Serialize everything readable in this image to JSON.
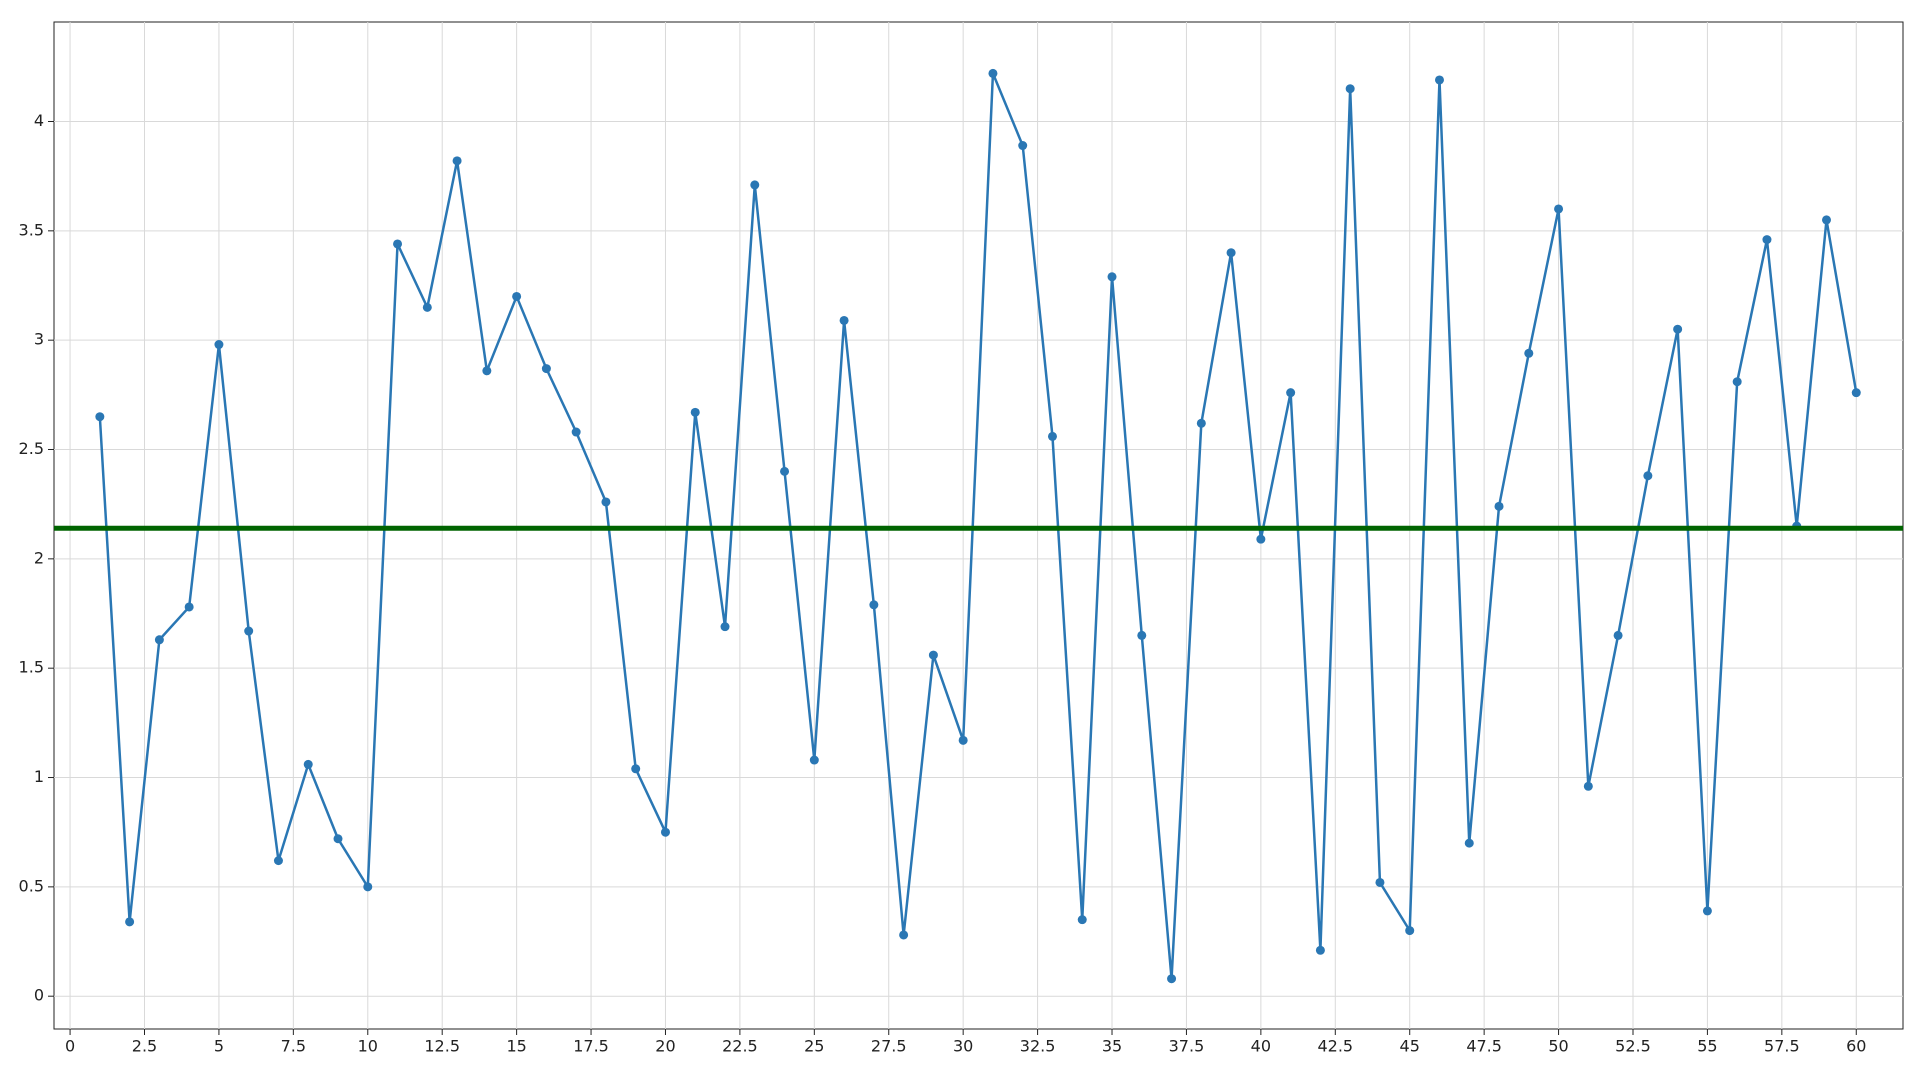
{
  "chart_data": {
    "type": "line",
    "x": [
      1,
      2,
      3,
      4,
      5,
      6,
      7,
      8,
      9,
      10,
      11,
      12,
      13,
      14,
      15,
      16,
      17,
      18,
      19,
      20,
      21,
      22,
      23,
      24,
      25,
      26,
      27,
      28,
      29,
      30,
      31,
      32,
      33,
      34,
      35,
      36,
      37,
      38,
      39,
      40,
      41,
      42,
      43,
      44,
      45,
      46,
      47,
      48,
      49,
      50,
      51,
      52,
      53,
      54,
      55,
      56,
      57,
      58,
      59,
      60
    ],
    "series": [
      {
        "color": "#2a77b4",
        "values": [
          2.65,
          0.34,
          1.63,
          1.78,
          2.98,
          1.67,
          0.62,
          1.06,
          0.72,
          0.5,
          3.44,
          3.15,
          3.82,
          2.86,
          3.2,
          2.87,
          2.58,
          2.26,
          1.04,
          0.75,
          2.67,
          1.69,
          3.71,
          2.4,
          1.08,
          3.09,
          1.79,
          0.28,
          1.56,
          1.17,
          4.22,
          3.89,
          2.56,
          0.35,
          3.29,
          1.65,
          0.08,
          2.62,
          3.4,
          2.09,
          2.76,
          0.21,
          4.15,
          0.52,
          0.3,
          4.19,
          0.7,
          2.24,
          2.94,
          3.6,
          0.96,
          1.65,
          2.38,
          3.05,
          0.39,
          2.81,
          3.46,
          2.15,
          3.55,
          2.76
        ]
      }
    ],
    "reference_line": {
      "value": 2.14,
      "color": "#006400"
    },
    "xlim": [
      -0.54,
      61.57
    ],
    "ylim": [
      -0.15,
      4.455
    ],
    "xticks": [
      0,
      2.5,
      5,
      7.5,
      10,
      12.5,
      15,
      17.5,
      20,
      22.5,
      25,
      27.5,
      30,
      32.5,
      35,
      37.5,
      40,
      42.5,
      45,
      47.5,
      50,
      52.5,
      55,
      57.5,
      60
    ],
    "yticks": [
      0,
      0.5,
      1,
      1.5,
      2,
      2.5,
      3,
      3.5,
      4
    ],
    "grid": true
  }
}
